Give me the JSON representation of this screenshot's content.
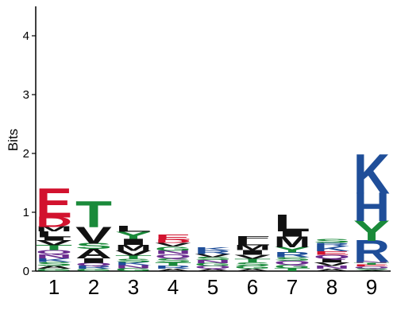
{
  "chart_data": {
    "type": "sequence-logo",
    "ylabel": "Bits",
    "ylim": [
      0,
      4.5
    ],
    "yticks": [
      0,
      1,
      2,
      3,
      4
    ],
    "positions": [
      {
        "pos": "1",
        "stack": [
          {
            "letter": "G",
            "bits": 0.04
          },
          {
            "letter": "A",
            "bits": 0.05
          },
          {
            "letter": "S",
            "bits": 0.07
          },
          {
            "letter": "K",
            "bits": 0.06
          },
          {
            "letter": "N",
            "bits": 0.07
          },
          {
            "letter": "Q",
            "bits": 0.07
          },
          {
            "letter": "T",
            "bits": 0.08
          },
          {
            "letter": "V",
            "bits": 0.08
          },
          {
            "letter": "I",
            "bits": 0.06
          },
          {
            "letter": "L",
            "bits": 0.1
          },
          {
            "letter": "M",
            "bits": 0.08
          },
          {
            "letter": "D",
            "bits": 0.17
          },
          {
            "letter": "E",
            "bits": 0.48
          }
        ]
      },
      {
        "pos": "2",
        "stack": [
          {
            "letter": "G",
            "bits": 0.04
          },
          {
            "letter": "R",
            "bits": 0.05
          },
          {
            "letter": "Q",
            "bits": 0.05
          },
          {
            "letter": "I",
            "bits": 0.08
          },
          {
            "letter": "A",
            "bits": 0.16
          },
          {
            "letter": "S",
            "bits": 0.1
          },
          {
            "letter": "V",
            "bits": 0.28
          },
          {
            "letter": "T",
            "bits": 0.43
          }
        ]
      },
      {
        "pos": "3",
        "stack": [
          {
            "letter": "G",
            "bits": 0.05
          },
          {
            "letter": "N",
            "bits": 0.05
          },
          {
            "letter": "K",
            "bits": 0.05
          },
          {
            "letter": "S",
            "bits": 0.06
          },
          {
            "letter": "T",
            "bits": 0.06
          },
          {
            "letter": "V",
            "bits": 0.08
          },
          {
            "letter": "M",
            "bits": 0.1
          },
          {
            "letter": "I",
            "bits": 0.1
          },
          {
            "letter": "Y",
            "bits": 0.12
          },
          {
            "letter": "L",
            "bits": 0.1
          }
        ]
      },
      {
        "pos": "4",
        "stack": [
          {
            "letter": "A",
            "bits": 0.04
          },
          {
            "letter": "R",
            "bits": 0.05
          },
          {
            "letter": "T",
            "bits": 0.06
          },
          {
            "letter": "S",
            "bits": 0.07
          },
          {
            "letter": "Q",
            "bits": 0.07
          },
          {
            "letter": "N",
            "bits": 0.06
          },
          {
            "letter": "G",
            "bits": 0.07
          },
          {
            "letter": "V",
            "bits": 0.06
          },
          {
            "letter": "D",
            "bits": 0.06
          },
          {
            "letter": "E",
            "bits": 0.08
          }
        ]
      },
      {
        "pos": "5",
        "stack": [
          {
            "letter": "A",
            "bits": 0.04
          },
          {
            "letter": "Q",
            "bits": 0.05
          },
          {
            "letter": "G",
            "bits": 0.05
          },
          {
            "letter": "N",
            "bits": 0.05
          },
          {
            "letter": "S",
            "bits": 0.05
          },
          {
            "letter": "V",
            "bits": 0.05
          },
          {
            "letter": "R",
            "bits": 0.06
          },
          {
            "letter": "K",
            "bits": 0.05
          }
        ]
      },
      {
        "pos": "6",
        "stack": [
          {
            "letter": "A",
            "bits": 0.04
          },
          {
            "letter": "G",
            "bits": 0.05
          },
          {
            "letter": "S",
            "bits": 0.06
          },
          {
            "letter": "T",
            "bits": 0.06
          },
          {
            "letter": "V",
            "bits": 0.07
          },
          {
            "letter": "I",
            "bits": 0.08
          },
          {
            "letter": "M",
            "bits": 0.08
          },
          {
            "letter": "L",
            "bits": 0.09
          },
          {
            "letter": "F",
            "bits": 0.07
          }
        ]
      },
      {
        "pos": "7",
        "stack": [
          {
            "letter": "T",
            "bits": 0.05
          },
          {
            "letter": "G",
            "bits": 0.06
          },
          {
            "letter": "Q",
            "bits": 0.07
          },
          {
            "letter": "S",
            "bits": 0.06
          },
          {
            "letter": "R",
            "bits": 0.08
          },
          {
            "letter": "Y",
            "bits": 0.09
          },
          {
            "letter": "M",
            "bits": 0.18
          },
          {
            "letter": "I",
            "bits": 0.1
          },
          {
            "letter": "L",
            "bits": 0.28
          }
        ]
      },
      {
        "pos": "8",
        "stack": [
          {
            "letter": "A",
            "bits": 0.04
          },
          {
            "letter": "N",
            "bits": 0.05
          },
          {
            "letter": "V",
            "bits": 0.06
          },
          {
            "letter": "I",
            "bits": 0.06
          },
          {
            "letter": "Q",
            "bits": 0.07
          },
          {
            "letter": "E",
            "bits": 0.06
          },
          {
            "letter": "K",
            "bits": 0.08
          },
          {
            "letter": "R",
            "bits": 0.06
          },
          {
            "letter": "S",
            "bits": 0.07
          }
        ]
      },
      {
        "pos": "9",
        "stack": [
          {
            "letter": "A",
            "bits": 0.02
          },
          {
            "letter": "S",
            "bits": 0.03
          },
          {
            "letter": "Q",
            "bits": 0.03
          },
          {
            "letter": "E",
            "bits": 0.03
          },
          {
            "letter": "T",
            "bits": 0.03
          },
          {
            "letter": "N",
            "bits": 0.03
          },
          {
            "letter": "R",
            "bits": 0.36
          },
          {
            "letter": "Y",
            "bits": 0.34
          },
          {
            "letter": "H",
            "bits": 0.47
          },
          {
            "letter": "K",
            "bits": 0.65
          }
        ]
      }
    ],
    "colors": {
      "acidic": "#d2122e",
      "basic": "#1f4e99",
      "polar": "#1a8a3a",
      "hydrophobic": "#111111",
      "neutral": "#6b2d8f"
    },
    "letter_classes": {
      "D": "acidic",
      "E": "acidic",
      "K": "basic",
      "R": "basic",
      "H": "basic",
      "S": "polar",
      "T": "polar",
      "Y": "polar",
      "C": "polar",
      "G": "polar",
      "N": "neutral",
      "Q": "neutral",
      "A": "hydrophobic",
      "V": "hydrophobic",
      "L": "hydrophobic",
      "I": "hydrophobic",
      "P": "hydrophobic",
      "W": "hydrophobic",
      "F": "hydrophobic",
      "M": "hydrophobic"
    }
  }
}
